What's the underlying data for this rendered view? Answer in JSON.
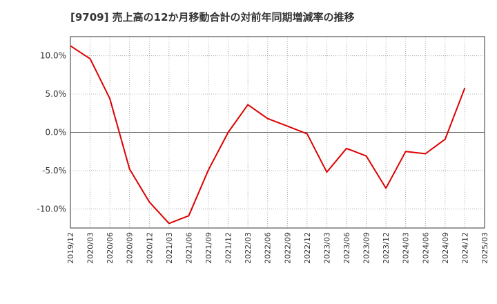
{
  "chart_data": {
    "type": "line",
    "title": "[9709]  売上高の12か月移動合計の対前年同期増減率の推移",
    "xlabel": "",
    "ylabel": "",
    "x": [
      "2019/12",
      "2020/03",
      "2020/06",
      "2020/09",
      "2020/12",
      "2021/03",
      "2021/06",
      "2021/09",
      "2021/12",
      "2022/03",
      "2022/06",
      "2022/09",
      "2022/12",
      "2023/03",
      "2023/06",
      "2023/09",
      "2023/12",
      "2024/03",
      "2024/06",
      "2024/09",
      "2024/12",
      "2025/03"
    ],
    "series": [
      {
        "name": "",
        "color": "#dd0000",
        "values": [
          11.3,
          9.6,
          4.4,
          -4.8,
          -9.1,
          -11.9,
          -10.9,
          -4.9,
          0.0,
          3.6,
          1.8,
          0.8,
          -0.2,
          -5.2,
          -2.1,
          -3.1,
          -7.3,
          -2.5,
          -2.8,
          -0.9,
          5.8,
          null
        ]
      }
    ],
    "ylim": [
      -12.5,
      12.5
    ],
    "yticks": [
      10,
      5,
      0,
      -5,
      -10
    ],
    "ytick_labels": [
      "10.0%",
      "5.0%",
      "0.0%",
      "-5.0%",
      "-10.0%"
    ],
    "grid": true,
    "legend": "none"
  }
}
